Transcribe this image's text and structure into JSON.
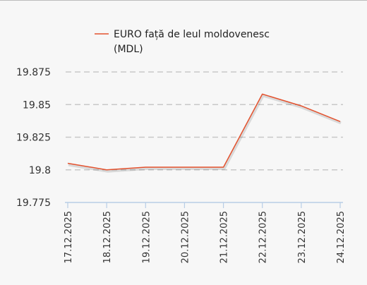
{
  "chart_data": {
    "type": "line",
    "x": [
      "17.12.2025",
      "18.12.2025",
      "19.12.2025",
      "20.12.2025",
      "21.12.2025",
      "22.12.2025",
      "23.12.2025",
      "24.12.2025"
    ],
    "series": [
      {
        "name": "EURO față de leul moldovenesc (MDL)",
        "legend_lines": [
          "EURO față de leul moldovenesc",
          "(MDL)"
        ],
        "values": [
          19.805,
          19.8,
          19.802,
          19.802,
          19.802,
          19.858,
          19.849,
          19.837
        ],
        "color": "#e4522e"
      }
    ],
    "yticks": [
      "19.775",
      "19.8",
      "19.825",
      "19.85",
      "19.875"
    ],
    "ylim": [
      19.775,
      19.875
    ],
    "grid": true,
    "grid_style": "dashed",
    "legend_position": "top"
  }
}
